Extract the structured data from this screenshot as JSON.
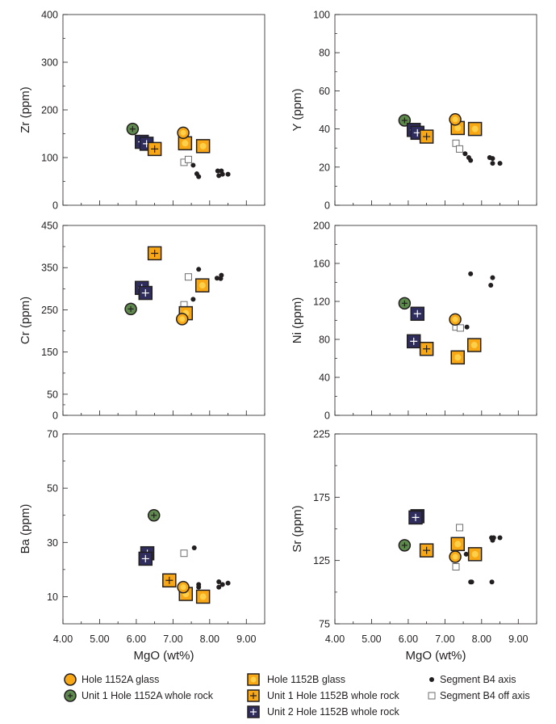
{
  "colors": {
    "axis": "#231f20",
    "hole_1152a_glass": "#f7a814",
    "unit1_1152a_whole_rock": "#5e8a4e",
    "hole_1152b_glass": "#f7a814",
    "unit1_1152b_whole_rock": "#f7a814",
    "unit2_1152b_whole_rock": "#2e2d5e",
    "segment_axis": "#231f20",
    "segment_off_axis": "#ffffff"
  },
  "legend": [
    {
      "label": "Hole 1152A glass",
      "marker": "circle-orange"
    },
    {
      "label": "Unit 1 Hole 1152A whole rock",
      "marker": "circle-green-plus"
    },
    {
      "label": "Hole 1152B glass",
      "marker": "square-orange"
    },
    {
      "label": "Unit 1 Hole 1152B whole rock",
      "marker": "square-orange-plus"
    },
    {
      "label": "Unit 2 Hole 1152B whole rock",
      "marker": "square-navy-plus"
    },
    {
      "label": "Segment B4 axis",
      "marker": "dot-black"
    },
    {
      "label": "Segment B4 off axis",
      "marker": "square-open"
    }
  ],
  "chart_data": [
    {
      "id": "zr",
      "type": "scatter",
      "xlabel": "",
      "ylabel": "Zr (ppm)",
      "xlim": [
        4.0,
        9.5
      ],
      "ylim": [
        0,
        400
      ],
      "xticks": [],
      "yticks": [
        0,
        100,
        200,
        300,
        400
      ],
      "series": [
        {
          "marker": "circle-orange",
          "points": [
            [
              7.28,
              152
            ]
          ]
        },
        {
          "marker": "circle-green-plus",
          "points": [
            [
              5.9,
              160
            ]
          ]
        },
        {
          "marker": "square-orange",
          "points": [
            [
              7.33,
              130
            ],
            [
              7.82,
              124
            ]
          ]
        },
        {
          "marker": "square-orange-plus",
          "points": [
            [
              6.5,
              118
            ]
          ]
        },
        {
          "marker": "square-navy-plus",
          "points": [
            [
              6.15,
              133
            ],
            [
              6.28,
              129
            ]
          ]
        },
        {
          "marker": "dot-black",
          "points": [
            [
              7.55,
              84
            ],
            [
              7.65,
              66
            ],
            [
              7.7,
              60
            ],
            [
              8.22,
              72
            ],
            [
              8.32,
              72
            ],
            [
              8.5,
              65
            ],
            [
              8.25,
              62
            ],
            [
              8.35,
              65
            ]
          ]
        },
        {
          "marker": "square-open",
          "points": [
            [
              7.3,
              90
            ],
            [
              7.42,
              96
            ]
          ]
        }
      ]
    },
    {
      "id": "y",
      "type": "scatter",
      "xlabel": "",
      "ylabel": "Y (ppm)",
      "xlim": [
        4.0,
        9.5
      ],
      "ylim": [
        0,
        100
      ],
      "xticks": [],
      "yticks": [
        0,
        20,
        40,
        60,
        80,
        100
      ],
      "series": [
        {
          "marker": "circle-orange",
          "points": [
            [
              7.28,
              45
            ]
          ]
        },
        {
          "marker": "circle-green-plus",
          "points": [
            [
              5.9,
              44.5
            ]
          ]
        },
        {
          "marker": "square-orange",
          "points": [
            [
              7.35,
              40.5
            ],
            [
              7.82,
              40
            ]
          ]
        },
        {
          "marker": "square-orange-plus",
          "points": [
            [
              6.5,
              36
            ]
          ]
        },
        {
          "marker": "square-navy-plus",
          "points": [
            [
              6.15,
              39.5
            ],
            [
              6.25,
              38
            ]
          ]
        },
        {
          "marker": "dot-black",
          "points": [
            [
              7.55,
              27
            ],
            [
              7.65,
              25
            ],
            [
              7.7,
              23.5
            ],
            [
              8.22,
              25
            ],
            [
              8.3,
              24.5
            ],
            [
              8.3,
              22
            ],
            [
              8.5,
              22
            ]
          ]
        },
        {
          "marker": "square-open",
          "points": [
            [
              7.3,
              32.5
            ],
            [
              7.4,
              29.5
            ]
          ]
        }
      ]
    },
    {
      "id": "cr",
      "type": "scatter",
      "xlabel": "",
      "ylabel": "Cr (ppm)",
      "xlim": [
        4.0,
        9.5
      ],
      "ylim": [
        0,
        450
      ],
      "xticks": [],
      "yticks": [
        0,
        50,
        150,
        250,
        350,
        450
      ],
      "series": [
        {
          "marker": "circle-orange",
          "points": [
            [
              7.25,
              228
            ]
          ]
        },
        {
          "marker": "circle-green-plus",
          "points": [
            [
              5.85,
              252
            ]
          ]
        },
        {
          "marker": "square-orange",
          "points": [
            [
              7.8,
              308
            ],
            [
              7.35,
              242
            ]
          ]
        },
        {
          "marker": "square-orange-plus",
          "points": [
            [
              6.5,
              384
            ]
          ]
        },
        {
          "marker": "square-navy-plus",
          "points": [
            [
              6.15,
              302
            ],
            [
              6.25,
              290
            ]
          ]
        },
        {
          "marker": "dot-black",
          "points": [
            [
              7.55,
              275
            ],
            [
              7.7,
              346
            ],
            [
              8.2,
              325
            ],
            [
              8.32,
              332
            ],
            [
              8.3,
              324
            ]
          ]
        },
        {
          "marker": "square-open",
          "points": [
            [
              7.42,
              328
            ],
            [
              7.3,
              262
            ]
          ]
        }
      ]
    },
    {
      "id": "ni",
      "type": "scatter",
      "xlabel": "",
      "ylabel": "Ni (ppm)",
      "xlim": [
        4.0,
        9.5
      ],
      "ylim": [
        0,
        200
      ],
      "xticks": [],
      "yticks": [
        0,
        40,
        80,
        120,
        160,
        200
      ],
      "series": [
        {
          "marker": "circle-orange",
          "points": [
            [
              7.28,
              101
            ]
          ]
        },
        {
          "marker": "circle-green-plus",
          "points": [
            [
              5.9,
              118
            ]
          ]
        },
        {
          "marker": "square-orange",
          "points": [
            [
              7.8,
              74
            ],
            [
              7.35,
              61
            ]
          ]
        },
        {
          "marker": "square-orange-plus",
          "points": [
            [
              6.5,
              70
            ]
          ]
        },
        {
          "marker": "square-navy-plus",
          "points": [
            [
              6.25,
              107
            ],
            [
              6.15,
              78
            ]
          ]
        },
        {
          "marker": "dot-black",
          "points": [
            [
              7.7,
              149
            ],
            [
              8.3,
              145
            ],
            [
              8.25,
              137
            ],
            [
              7.6,
              93
            ]
          ]
        },
        {
          "marker": "square-open",
          "points": [
            [
              7.3,
              93
            ],
            [
              7.42,
              92
            ]
          ]
        }
      ]
    },
    {
      "id": "ba",
      "type": "scatter",
      "xlabel": "MgO (wt%)",
      "ylabel": "Ba (ppm)",
      "xlim": [
        4.0,
        9.5
      ],
      "ylim": [
        0,
        70
      ],
      "xticks": [
        "4.00",
        "5.00",
        "6.00",
        "7.00",
        "8.00",
        "9.00"
      ],
      "yticks": [
        10,
        30,
        50,
        70
      ],
      "series": [
        {
          "marker": "circle-orange",
          "points": [
            [
              7.28,
              13.5
            ]
          ]
        },
        {
          "marker": "circle-green-plus",
          "points": [
            [
              6.48,
              40
            ]
          ]
        },
        {
          "marker": "square-orange",
          "points": [
            [
              7.35,
              11
            ],
            [
              7.82,
              10
            ]
          ]
        },
        {
          "marker": "square-orange-plus",
          "points": [
            [
              6.9,
              16
            ]
          ]
        },
        {
          "marker": "square-navy-plus",
          "points": [
            [
              6.3,
              26
            ],
            [
              6.25,
              24
            ]
          ]
        },
        {
          "marker": "dot-black",
          "points": [
            [
              7.58,
              28
            ],
            [
              7.7,
              14.5
            ],
            [
              7.7,
              13.5
            ],
            [
              8.25,
              15.5
            ],
            [
              8.35,
              14.5
            ],
            [
              8.25,
              13.5
            ],
            [
              8.5,
              15
            ]
          ]
        },
        {
          "marker": "square-open",
          "points": [
            [
              7.3,
              26
            ]
          ]
        }
      ]
    },
    {
      "id": "sr",
      "type": "scatter",
      "xlabel": "MgO (wt%)",
      "ylabel": "Sr (ppm)",
      "xlim": [
        4.0,
        9.5
      ],
      "ylim": [
        75,
        225
      ],
      "xticks": [
        "4.00",
        "5.00",
        "6.00",
        "7.00",
        "8.00",
        "9.00"
      ],
      "yticks": [
        75,
        125,
        175,
        225
      ],
      "series": [
        {
          "marker": "circle-orange",
          "points": [
            [
              7.28,
              128
            ]
          ]
        },
        {
          "marker": "circle-green-plus",
          "points": [
            [
              5.9,
              137
            ]
          ]
        },
        {
          "marker": "square-orange",
          "points": [
            [
              7.35,
              138
            ],
            [
              7.82,
              130
            ]
          ]
        },
        {
          "marker": "square-orange-plus",
          "points": [
            [
              6.5,
              133
            ]
          ]
        },
        {
          "marker": "square-navy-plus",
          "points": [
            [
              6.25,
              160
            ],
            [
              6.2,
              159
            ]
          ]
        },
        {
          "marker": "dot-black",
          "points": [
            [
              7.58,
              130
            ],
            [
              7.7,
              108
            ],
            [
              7.73,
              108
            ],
            [
              8.27,
              143
            ],
            [
              8.33,
              143
            ],
            [
              8.5,
              143
            ],
            [
              8.3,
              141
            ],
            [
              8.28,
              108
            ]
          ]
        },
        {
          "marker": "square-open",
          "points": [
            [
              7.4,
              151
            ],
            [
              7.3,
              120
            ]
          ]
        }
      ]
    }
  ]
}
